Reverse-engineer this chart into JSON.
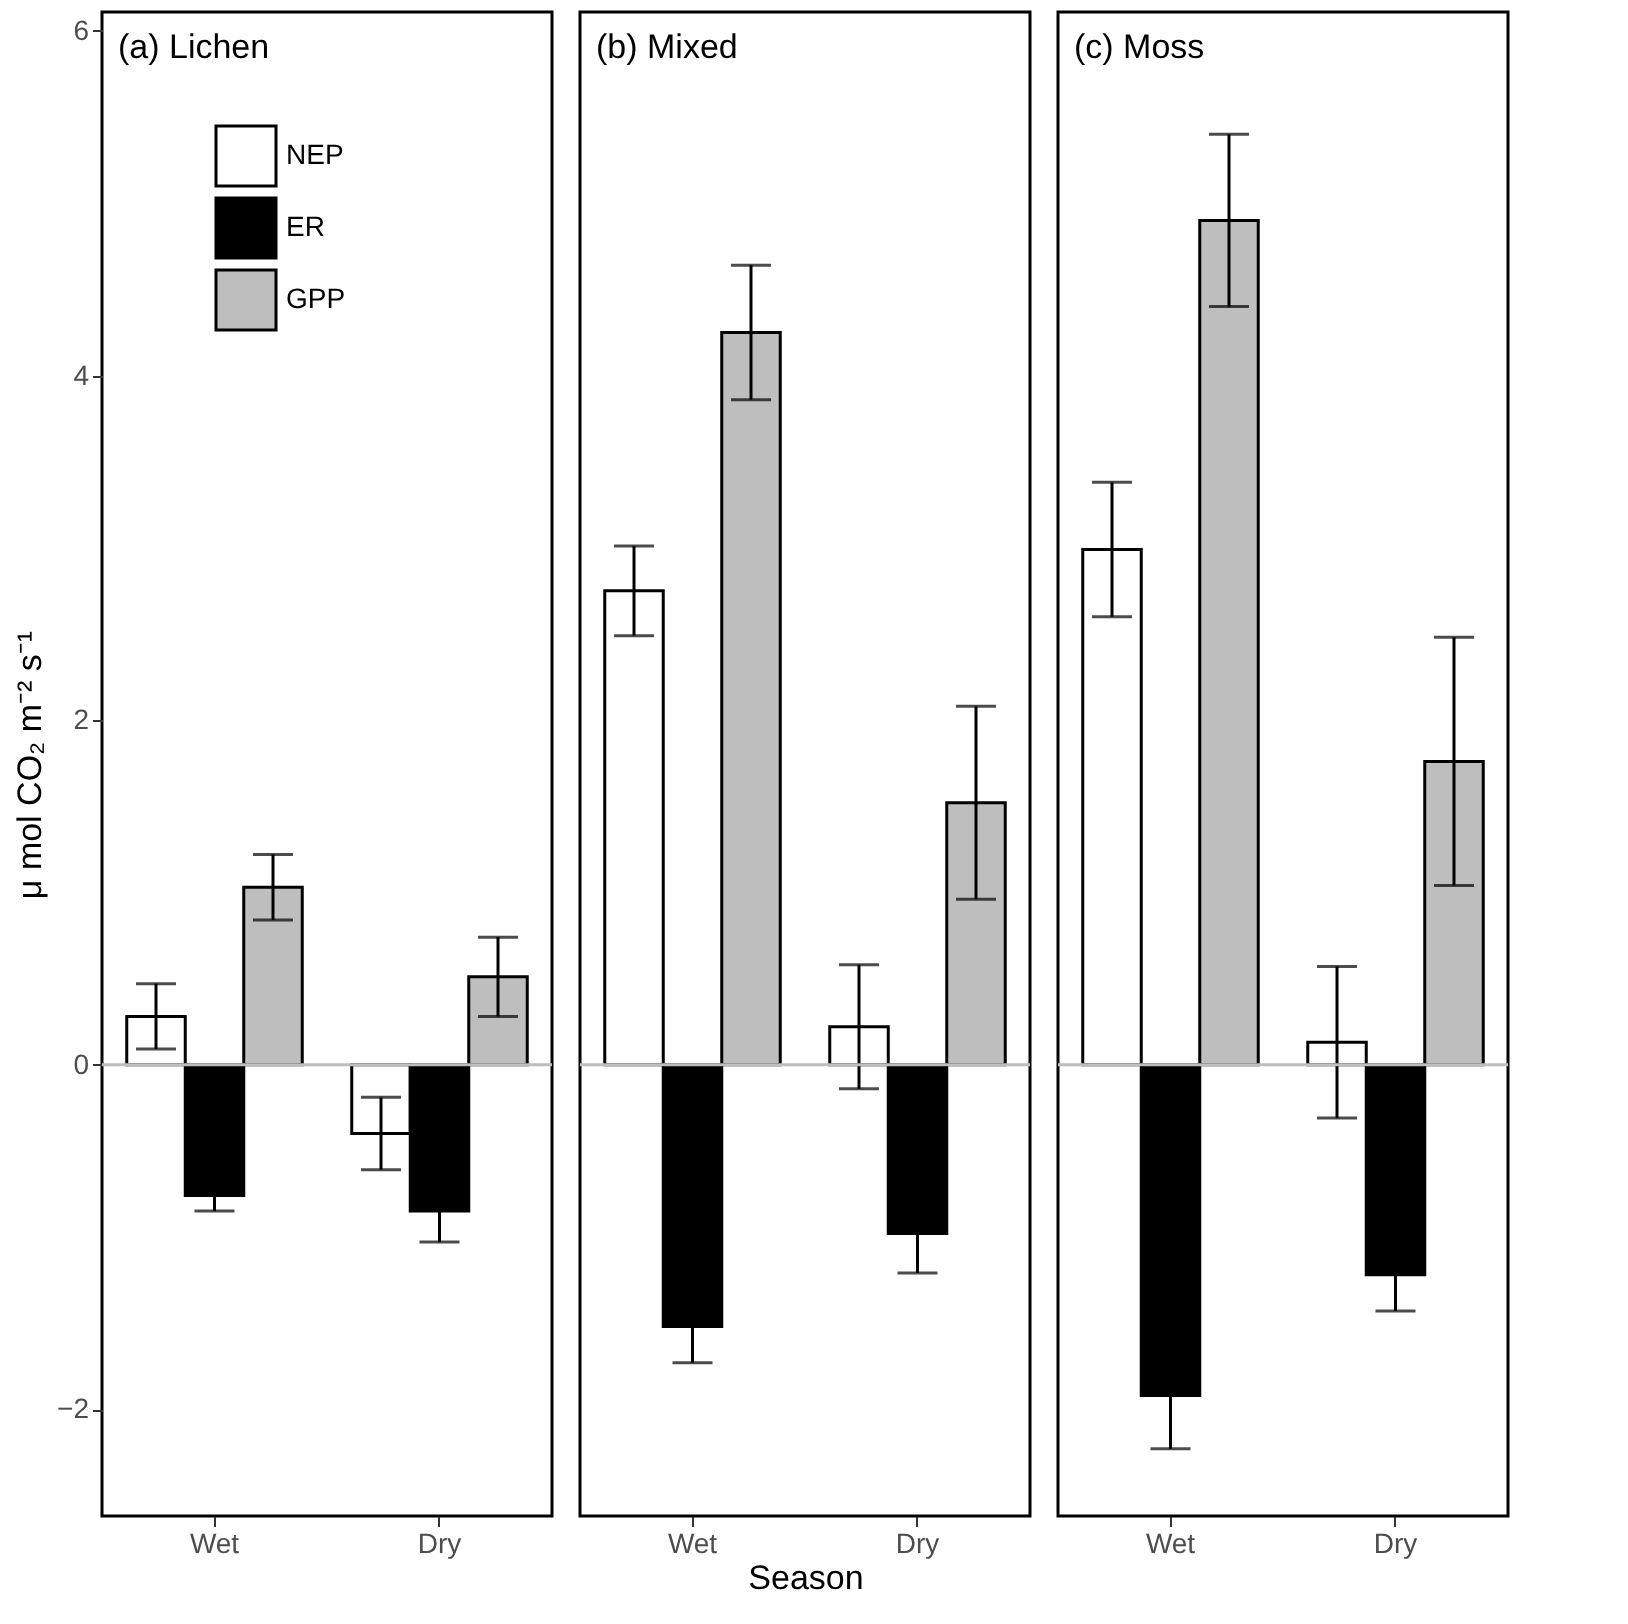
{
  "chart_data": [
    {
      "type": "bar",
      "title": "(a) Lichen",
      "ylabel": "μ mol CO₂ m⁻² s⁻¹",
      "categories": [
        "Wet",
        "Dry"
      ],
      "ylim": [
        -2.62,
        6.11
      ],
      "yticks": [
        {
          "value": -2,
          "label": "−2"
        },
        0,
        2,
        4,
        6
      ],
      "grid": false,
      "legend": "top left",
      "ref_lines": [
        {
          "axis": "y",
          "value": 0,
          "color": "#bebebe"
        }
      ],
      "series": [
        {
          "name": "NEP",
          "color": "#ffffff",
          "values": [
            0.28,
            -0.4
          ],
          "errors": [
            0.19,
            0.21
          ]
        },
        {
          "name": "ER",
          "color": "#000000",
          "values": [
            -0.76,
            -0.85
          ],
          "errors": [
            0.09,
            0.18
          ]
        },
        {
          "name": "GPP",
          "color": "#bebebe",
          "values": [
            1.03,
            0.51
          ],
          "errors": [
            0.19,
            0.23
          ]
        }
      ]
    },
    {
      "type": "bar",
      "title": "(b) Mixed",
      "xlabel": "Season",
      "categories": [
        "Wet",
        "Dry"
      ],
      "ylim": [
        -2.62,
        6.11
      ],
      "yticks": [
        -2,
        0,
        2,
        4,
        6
      ],
      "grid": false,
      "legend": false,
      "tick_labels": "x",
      "ref_lines": [
        {
          "axis": "y",
          "value": 0,
          "color": "#bebebe"
        }
      ],
      "series": [
        {
          "color": "#ffffff",
          "values": [
            2.75,
            0.22
          ],
          "errors": [
            0.26,
            0.36
          ]
        },
        {
          "color": "#000000",
          "values": [
            -1.52,
            -0.98
          ],
          "errors": [
            0.21,
            0.23
          ]
        },
        {
          "color": "#bebebe",
          "values": [
            4.25,
            1.52
          ],
          "errors": [
            0.39,
            0.56
          ]
        }
      ]
    },
    {
      "type": "bar",
      "title": "(c) Moss",
      "categories": [
        "Wet",
        "Dry"
      ],
      "ylim": [
        -2.62,
        6.11
      ],
      "yticks": [
        -2,
        0,
        2,
        4,
        6
      ],
      "grid": false,
      "legend": false,
      "tick_labels": "x",
      "ref_lines": [
        {
          "axis": "y",
          "value": 0,
          "color": "#bebebe"
        }
      ],
      "series": [
        {
          "color": "#ffffff",
          "values": [
            2.99,
            0.13
          ],
          "errors": [
            0.39,
            0.44
          ]
        },
        {
          "color": "#000000",
          "values": [
            -1.92,
            -1.22
          ],
          "errors": [
            0.31,
            0.21
          ]
        },
        {
          "color": "#bebebe",
          "values": [
            4.9,
            1.76
          ],
          "errors": [
            0.5,
            0.72
          ]
        }
      ]
    }
  ]
}
